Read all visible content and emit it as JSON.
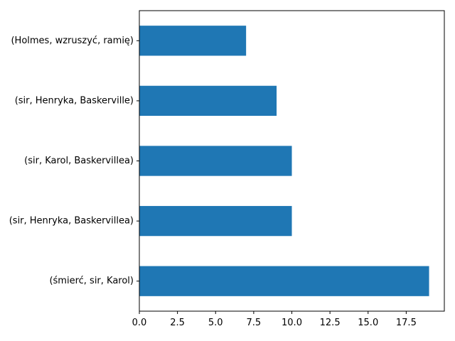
{
  "chart_data": {
    "type": "bar",
    "orientation": "horizontal",
    "categories": [
      "(Holmes, wzruszyć, ramię)",
      "(sir, Henryka, Baskerville)",
      "(sir, Karol, Baskervillea)",
      "(sir, Henryka, Baskervillea)",
      "(śmierć, sir, Karol)"
    ],
    "values": [
      7,
      9,
      10,
      10,
      19
    ],
    "xlim": [
      0,
      20
    ],
    "xticks": [
      0,
      2.5,
      5,
      7.5,
      10,
      12.5,
      15,
      17.5
    ],
    "xtick_labels": [
      "0.0",
      "2.5",
      "5.0",
      "7.5",
      "10.0",
      "12.5",
      "15.0",
      "17.5"
    ],
    "grid": false,
    "bar_color": "#1f77b4"
  }
}
